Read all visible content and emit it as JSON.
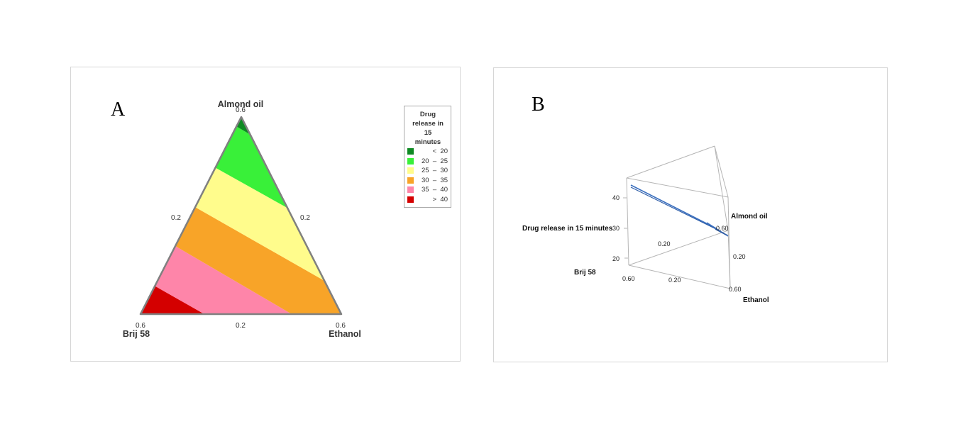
{
  "panel_a": {
    "letter": "A",
    "vertex_labels": {
      "top": "Almond oil",
      "bottom_left": "Brij 58",
      "bottom_right": "Ethanol"
    },
    "ticks": {
      "top": "0.6",
      "bottom_left": "0.6",
      "bottom_right": "0.6",
      "left_mid": "0.2",
      "right_mid": "0.2",
      "bottom_mid": "0.2"
    },
    "legend": {
      "title": "Drug\nrelease in\n15\nminutes",
      "items": [
        {
          "label": "<  20",
          "color": "#0e8a23"
        },
        {
          "label": "20  –  25",
          "color": "#39f039"
        },
        {
          "label": "25  –  30",
          "color": "#fffc8c"
        },
        {
          "label": "30  –  35",
          "color": "#f8a428"
        },
        {
          "label": "35  –  40",
          "color": "#fe85a9"
        },
        {
          "label": ">  40",
          "color": "#d40000"
        }
      ]
    }
  },
  "panel_b": {
    "letter": "B",
    "z_axis_label": "Drug release in 15 minutes",
    "z_ticks": [
      "40",
      "30",
      "20"
    ],
    "vertex_labels": {
      "brij": "Brij 58",
      "almond": "Almond oil",
      "ethanol": "Ethanol"
    },
    "tick_labels": {
      "back_mid": "0.20",
      "right_vertex": "0.60",
      "right_mid": "0.20",
      "left_vertex": "0.60",
      "bottom_mid": "0.20",
      "ethanol_vertex": "0.60"
    },
    "line_color": "#3a6fbf"
  },
  "chart_data": [
    {
      "type": "heatmap",
      "subtype": "ternary contour",
      "components": [
        "Almond oil",
        "Brij 58",
        "Ethanol"
      ],
      "axis_range": [
        0,
        0.6
      ],
      "response": "Drug release in 15 minutes",
      "bands": [
        {
          "range": "< 20",
          "color": "#0e8a23"
        },
        {
          "range": "20 – 25",
          "color": "#39f039"
        },
        {
          "range": "25 – 30",
          "color": "#fffc8c"
        },
        {
          "range": "30 – 35",
          "color": "#f8a428"
        },
        {
          "range": "35 – 40",
          "color": "#fe85a9"
        },
        {
          "range": "> 40",
          "color": "#d40000"
        }
      ],
      "legend_position": "right"
    },
    {
      "type": "line",
      "subtype": "3D ternary surface",
      "components": [
        "Almond oil",
        "Brij 58",
        "Ethanol"
      ],
      "zlabel": "Drug release in 15 minutes",
      "zticks": [
        20,
        30,
        40
      ]
    }
  ]
}
